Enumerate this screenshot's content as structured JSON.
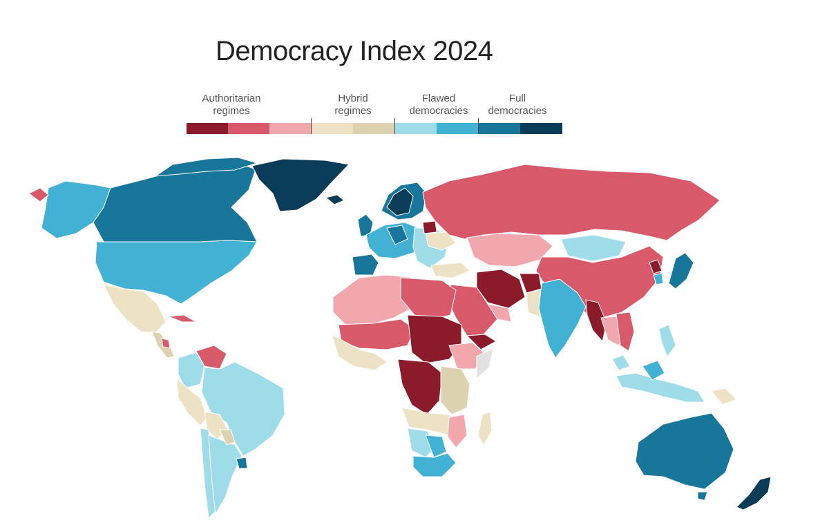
{
  "title": "Democracy Index 2024",
  "legend": {
    "categories": [
      {
        "name": "authoritarian",
        "label_line1": "Authoritarian",
        "label_line2": "regimes"
      },
      {
        "name": "hybrid",
        "label_line1": "Hybrid",
        "label_line2": "regimes"
      },
      {
        "name": "flawed",
        "label_line1": "Flawed",
        "label_line2": "democracies"
      },
      {
        "name": "full",
        "label_line1": "Full",
        "label_line2": "democracies"
      }
    ],
    "swatch_colors": [
      "#8b1a2b",
      "#d8596a",
      "#f2a7ae",
      "#ede3c4",
      "#dcd2b0",
      "#9fdcea",
      "#42b2d4",
      "#19769b",
      "#0b3c57"
    ]
  },
  "colors": {
    "authoritarian_dark": "#8b1a2b",
    "authoritarian_mid": "#d8596a",
    "authoritarian_light": "#f2a7ae",
    "hybrid_light": "#ede3c4",
    "hybrid_dark": "#dcd2b0",
    "flawed_light": "#9fdcea",
    "flawed_dark": "#42b2d4",
    "full_light": "#19769b",
    "full_dark": "#0b3c57",
    "no_data": "#e2e2e2"
  }
}
